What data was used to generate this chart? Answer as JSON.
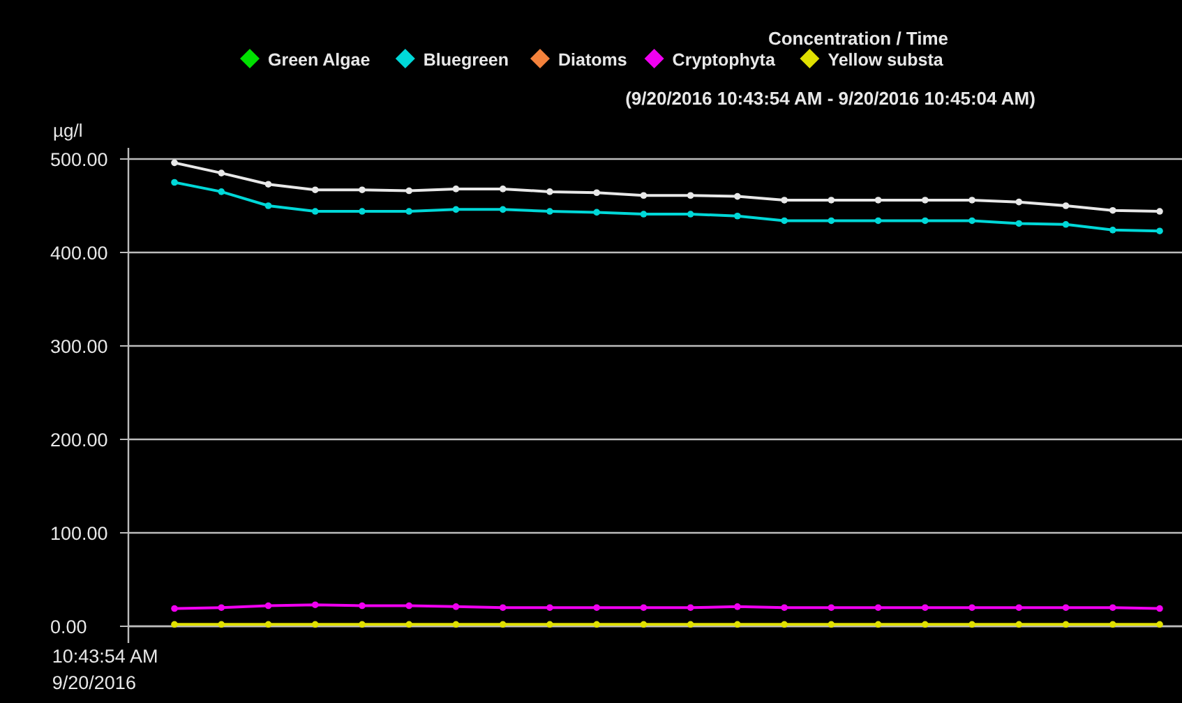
{
  "chart_data": {
    "type": "line",
    "title": "Concentration / Time",
    "subtitle": "(9/20/2016 10:43:54 AM - 9/20/2016 10:45:04 AM)",
    "ylabel": "µg/l",
    "categories": [
      "10:43:54 AM\n9/20/2016",
      null,
      null,
      null,
      null,
      null,
      null,
      null,
      null,
      null,
      null,
      null,
      null,
      null,
      null,
      null,
      null,
      null,
      null,
      null,
      null,
      null,
      null
    ],
    "series": [
      {
        "name": "Green Algae",
        "color": "#00e000",
        "values": [
          null,
          null,
          null,
          null,
          null,
          null,
          null,
          null,
          null,
          null,
          null,
          null,
          null,
          null,
          null,
          null,
          null,
          null,
          null,
          null,
          null,
          null,
          null
        ]
      },
      {
        "name": "Bluegreen",
        "color": "#00d8d8",
        "values": [
          null,
          475,
          465,
          450,
          444,
          444,
          444,
          446,
          446,
          444,
          443,
          441,
          441,
          439,
          434,
          434,
          434,
          434,
          434,
          431,
          430,
          424,
          423
        ]
      },
      {
        "name": "Diatoms",
        "color": "#f4823c",
        "values": [
          null,
          null,
          null,
          null,
          null,
          null,
          null,
          null,
          null,
          null,
          null,
          null,
          null,
          null,
          null,
          null,
          null,
          null,
          null,
          null,
          null,
          null,
          null
        ]
      },
      {
        "name": "Cryptophyta",
        "color": "#f000f0",
        "values": [
          null,
          19,
          20,
          22,
          23,
          22,
          22,
          21,
          20,
          20,
          20,
          20,
          20,
          21,
          20,
          20,
          20,
          20,
          20,
          20,
          20,
          20,
          19
        ]
      },
      {
        "name": "Yellow substa",
        "color": "#e0e000",
        "values": [
          null,
          2,
          2,
          2,
          2,
          2,
          2,
          2,
          2,
          2,
          2,
          2,
          2,
          2,
          2,
          2,
          2,
          2,
          2,
          2,
          2,
          2,
          2
        ]
      },
      {
        "color": "#e8e8e8",
        "values": [
          null,
          496,
          485,
          473,
          467,
          467,
          466,
          468,
          468,
          465,
          464,
          461,
          461,
          460,
          456,
          456,
          456,
          456,
          456,
          454,
          450,
          445,
          444
        ]
      }
    ],
    "ylim": [
      0,
      500
    ],
    "yticks": [
      {
        "value": 0,
        "label": "0.00"
      },
      {
        "value": 100,
        "label": "100.00"
      },
      {
        "value": 200,
        "label": "200.00"
      },
      {
        "value": 300,
        "label": "300.00"
      },
      {
        "value": 400,
        "label": "400.00"
      },
      {
        "value": 500,
        "label": "500.00"
      }
    ],
    "grid": "y",
    "legend": "top",
    "marker": "circle",
    "line_style": "solid"
  }
}
